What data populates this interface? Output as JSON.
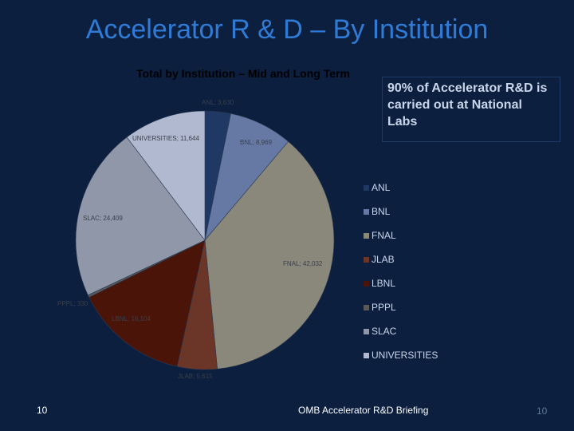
{
  "slide": {
    "title": "Accelerator R & D – By Institution",
    "callout": "90% of Accelerator R&D is carried out at National Labs",
    "footer_left": "10",
    "footer_center": "OMB Accelerator R&D Briefing",
    "footer_right": "10"
  },
  "chart_data": {
    "type": "pie",
    "title": "Total by Institution – Mid and Long Term",
    "legend_position": "right",
    "slices": [
      {
        "name": "ANL",
        "value": 3630,
        "label": "ANL; 3,630",
        "color": "#1f3864"
      },
      {
        "name": "BNL",
        "value": 8969,
        "label": "BNL; 8,969",
        "color": "#6678a4"
      },
      {
        "name": "FNAL",
        "value": 42032,
        "label": "FNAL; 42,032",
        "color": "#8a887a"
      },
      {
        "name": "JLAB",
        "value": 5615,
        "label": "JLAB; 5,615",
        "color": "#6b3628"
      },
      {
        "name": "LBNL",
        "value": 16104,
        "label": "LBNL; 16,104",
        "color": "#4a1408"
      },
      {
        "name": "PPPL",
        "value": 330,
        "label": "PPPL; 330",
        "color": "#595959"
      },
      {
        "name": "SLAC",
        "value": 24409,
        "label": "SLAC; 24,409",
        "color": "#8f97a8"
      },
      {
        "name": "UNIVERSITIES",
        "value": 11644,
        "label": "UNIVERSITIES; 11,644",
        "color": "#b0b9d0"
      }
    ]
  }
}
